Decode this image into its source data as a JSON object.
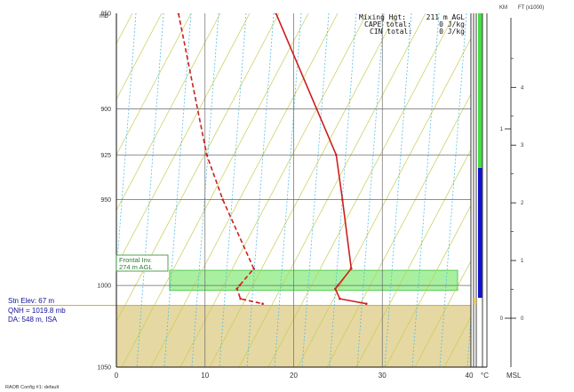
{
  "chart_data": {
    "type": "line",
    "title": "",
    "pressure_unit": "mb",
    "temp_unit": "°C",
    "y_axis": {
      "scale": "log-pressure",
      "range": [
        850,
        1050
      ],
      "ticks": [
        {
          "p": 850,
          "label": "850"
        },
        {
          "p": 900,
          "label": "900"
        },
        {
          "p": 925,
          "label": "925"
        },
        {
          "p": 950,
          "label": "950"
        },
        {
          "p": 1000,
          "label": "1000"
        },
        {
          "p": 1050,
          "label": "1050"
        }
      ]
    },
    "x_axis": {
      "range": [
        0,
        40
      ],
      "ticks": [
        {
          "t": 0,
          "label": "0"
        },
        {
          "t": 10,
          "label": "10"
        },
        {
          "t": 20,
          "label": "20"
        },
        {
          "t": 30,
          "label": "30"
        },
        {
          "t": 40,
          "label": "40"
        }
      ],
      "skew_per_decade": 0
    },
    "grid": true,
    "series": [
      {
        "role": "temperature",
        "style": "solid",
        "color": "#cc1f1f",
        "points": [
          [
            850,
            18.0
          ],
          [
            925,
            24.8
          ],
          [
            950,
            25.5
          ],
          [
            990,
            26.5
          ],
          [
            1000,
            25.0
          ],
          [
            1002,
            24.7
          ],
          [
            1008,
            25.2
          ],
          [
            1011,
            28.2
          ]
        ]
      },
      {
        "role": "dewpoint",
        "style": "dashed",
        "color": "#cc1f1f",
        "points": [
          [
            850,
            7.0
          ],
          [
            925,
            10.2
          ],
          [
            950,
            12.0
          ],
          [
            990,
            15.5
          ],
          [
            1000,
            13.9
          ],
          [
            1002,
            13.6
          ],
          [
            1008,
            14.0
          ],
          [
            1011,
            16.5
          ]
        ]
      }
    ],
    "layer": {
      "p_top": 991,
      "p_bottom": 1003,
      "t_left": 6,
      "t_right": 38.5,
      "color": "#a8f0a0"
    },
    "ground_p": 1012,
    "ground_color": "#e6d8a2"
  },
  "stats": {
    "lines": [
      {
        "key": "Mixing Hgt:",
        "value": "211 m AGL"
      },
      {
        "key": "CAPE total:",
        "value": "0 J/kg"
      },
      {
        "key": "CIN total:",
        "value": "0 J/kg"
      }
    ]
  },
  "annotations": {
    "frontal_line1": "Frontal Inv.",
    "frontal_line2": "274 m AGL",
    "stn_elev": "Stn Elev: 67 m",
    "qnh": "QNH = 1019.8 mb",
    "da": "DA: 548 m, ISA",
    "config": "RAOB Config #1: default"
  },
  "height_axis": {
    "km_label": "KM",
    "ft_label": "FT (x1000)",
    "msl_label": "MSL",
    "km_ticks": [
      {
        "label": "1",
        "value": 1
      },
      {
        "label": "0",
        "value": 0
      }
    ],
    "ft_ticks": [
      {
        "label": "4",
        "value": 4
      },
      {
        "label": "3",
        "value": 3
      },
      {
        "label": "2",
        "value": 2
      },
      {
        "label": "1",
        "value": 1
      },
      {
        "label": "0",
        "value": 0
      }
    ]
  },
  "bars": {
    "green": "#44dd44",
    "blue": "#1111cc",
    "ground": "#e6d8a2"
  },
  "colors": {
    "isotherm": "#6a6a6a",
    "dry_adiabat": "#c6cc55",
    "moist_adiabat": "#55bde8",
    "trace": "#cc1f1f",
    "frame": "#111111",
    "text_blue": "#111199"
  }
}
